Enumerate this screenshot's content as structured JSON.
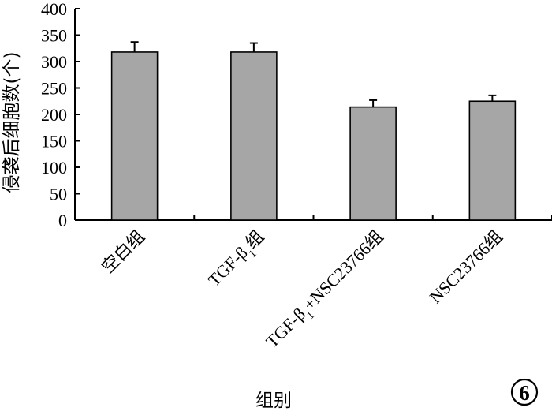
{
  "chart_data": {
    "type": "bar",
    "categories": [
      "空白组",
      "TGF-β1组",
      "TGF-β1+NSC23766组",
      "NSC23766组"
    ],
    "category_parts": [
      {
        "main": "空白组",
        "sub": "",
        "rest": ""
      },
      {
        "main": "TGF-β",
        "sub": "1",
        "rest": "组"
      },
      {
        "main": "TGF-β",
        "sub": "1",
        "rest": "+NSC23766组"
      },
      {
        "main": "NSC23766组",
        "sub": "",
        "rest": ""
      }
    ],
    "values": [
      318,
      318,
      214,
      225
    ],
    "errors": [
      19,
      17,
      13,
      11
    ],
    "xlabel": "组别",
    "ylabel": "侵袭后细胞数(个)",
    "ylim": [
      0,
      400
    ],
    "yticks": [
      0,
      50,
      100,
      150,
      200,
      250,
      300,
      350,
      400
    ],
    "bar_color": "#a6a6a6",
    "grid": false
  },
  "panel_label": "6"
}
